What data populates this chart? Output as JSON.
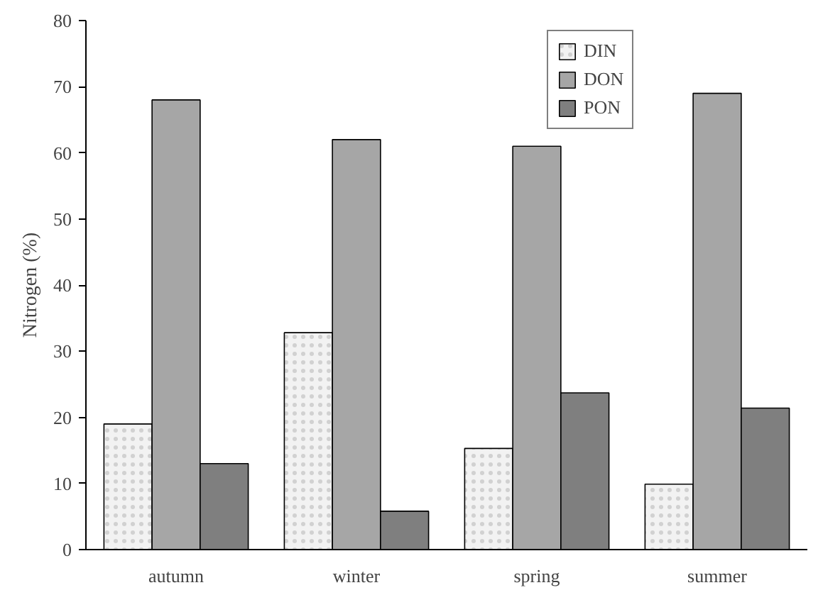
{
  "chart_data": {
    "type": "bar",
    "ylabel": "Nitrogen (%)",
    "categories": [
      "autumn",
      "winter",
      "spring",
      "summer"
    ],
    "series": [
      {
        "name": "DIN",
        "color": "#f2f2f2",
        "values": [
          19,
          32.8,
          15.3,
          9.9
        ]
      },
      {
        "name": "DON",
        "color": "#a6a6a6",
        "values": [
          68,
          62,
          61,
          69
        ]
      },
      {
        "name": "PON",
        "color": "#7f7f7f",
        "values": [
          13,
          5.8,
          23.7,
          21.4
        ]
      }
    ],
    "ylim": [
      0,
      80
    ],
    "yticks": [
      0,
      10,
      20,
      30,
      40,
      50,
      60,
      70,
      80
    ],
    "grid": false,
    "legend": "top right"
  }
}
